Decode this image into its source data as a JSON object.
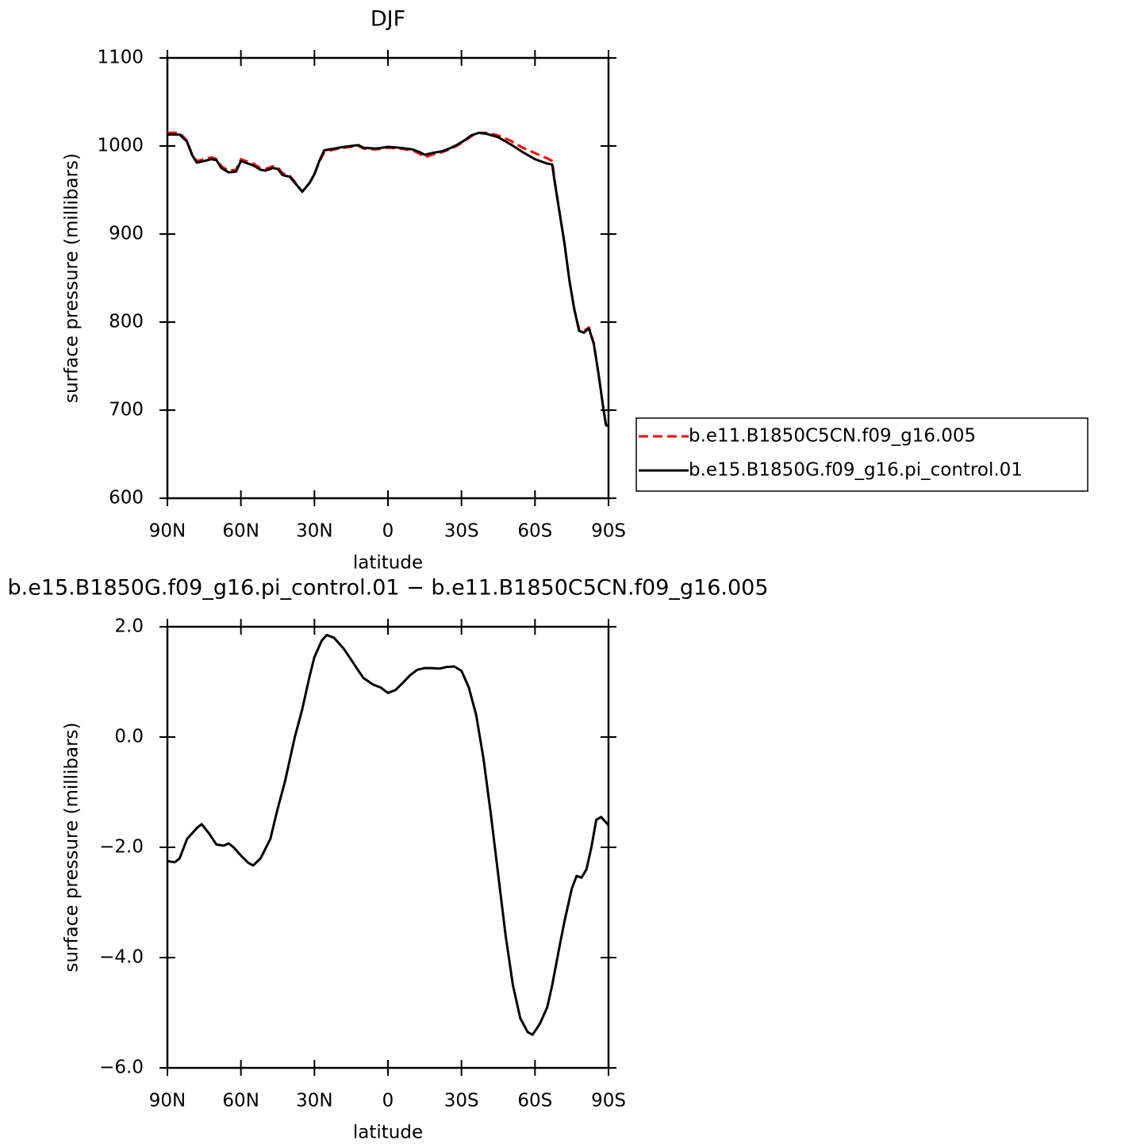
{
  "chart_data": [
    {
      "type": "line",
      "title": "DJF",
      "xlabel": "latitude",
      "ylabel": "surface pressure (millibars)",
      "xlim": [
        90,
        -90
      ],
      "xticks": [
        {
          "value": 90,
          "label": "90N"
        },
        {
          "value": 60,
          "label": "60N"
        },
        {
          "value": 30,
          "label": "30N"
        },
        0,
        {
          "value": -30,
          "label": "30S"
        },
        {
          "value": -60,
          "label": "60S"
        },
        {
          "value": -90,
          "label": "90S"
        }
      ],
      "ylim": [
        600,
        1100
      ],
      "yticks": [
        600,
        700,
        800,
        900,
        1000,
        1100
      ],
      "legend": "right",
      "x": [
        90,
        85,
        82,
        80,
        78,
        75,
        72,
        70,
        68,
        65,
        62,
        60,
        58,
        55,
        52,
        50,
        47,
        45,
        43,
        40,
        37,
        35,
        32,
        30,
        28,
        26,
        22,
        18,
        15,
        12,
        10,
        5,
        0,
        -5,
        -10,
        -13,
        -15,
        -18,
        -22,
        -25,
        -28,
        -31,
        -34,
        -37,
        -40,
        -45,
        -50,
        -55,
        -60,
        -63,
        -65,
        -67,
        -68,
        -70,
        -72,
        -74,
        -76,
        -78,
        -80,
        -82,
        -84,
        -86,
        -88,
        -89,
        -90
      ],
      "series": [
        {
          "name": "b.e11.B1850C5CN.f09_g16.005",
          "color": "#ff0000",
          "dash": true,
          "values": [
            1015,
            1015,
            1006,
            991,
            983,
            985,
            987,
            985,
            977,
            972,
            973,
            985,
            983,
            980,
            975,
            974,
            977,
            976,
            969,
            966,
            956,
            948,
            958,
            968,
            982,
            993,
            996,
            998,
            999,
            1000,
            997,
            996,
            998,
            997,
            995,
            991,
            987,
            990,
            993,
            996,
            1000,
            1005,
            1011,
            1015,
            1015,
            1012,
            1006,
            998,
            992,
            988,
            986,
            983,
            962,
            925,
            890,
            848,
            815,
            792,
            790,
            794,
            776,
            740,
            700,
            683,
            682
          ]
        },
        {
          "name": "b.e15.B1850G.f09_g16.pi_control.01",
          "color": "#000000",
          "dash": false,
          "values": [
            1013,
            1013,
            1005,
            990,
            981,
            983,
            985,
            984,
            975,
            970,
            971,
            983,
            981,
            978,
            973,
            972,
            975,
            974,
            967,
            965,
            955,
            948,
            958,
            968,
            983,
            995,
            997,
            999,
            1000,
            1001,
            998,
            997,
            999,
            998,
            996,
            993,
            990,
            992,
            994,
            997,
            1001,
            1006,
            1012,
            1015,
            1014,
            1010,
            1002,
            993,
            985,
            982,
            980,
            979,
            960,
            925,
            890,
            848,
            815,
            790,
            788,
            793,
            775,
            740,
            700,
            683,
            682
          ]
        }
      ]
    },
    {
      "type": "line",
      "title": "b.e15.B1850G.f09_g16.pi_control.01 − b.e11.B1850C5CN.f09_g16.005",
      "xlabel": "latitude",
      "ylabel": "surface pressure (millibars)",
      "xlim": [
        90,
        -90
      ],
      "xticks": [
        {
          "value": 90,
          "label": "90N"
        },
        {
          "value": 60,
          "label": "60N"
        },
        {
          "value": 30,
          "label": "30N"
        },
        0,
        {
          "value": -30,
          "label": "30S"
        },
        {
          "value": -60,
          "label": "60S"
        },
        {
          "value": -90,
          "label": "90S"
        }
      ],
      "ylim": [
        -6,
        2
      ],
      "yticks": [
        {
          "value": -6,
          "label": "−6.0"
        },
        {
          "value": -4,
          "label": "−4.0"
        },
        {
          "value": -2,
          "label": "−2.0"
        },
        {
          "value": 0,
          "label": "0.0"
        },
        {
          "value": 2,
          "label": "2.0"
        }
      ],
      "x": [
        90,
        87,
        85,
        82,
        78,
        76,
        73,
        70,
        67,
        65,
        63,
        60,
        57,
        55,
        52,
        48,
        45,
        42,
        38,
        35,
        32,
        30,
        27,
        25,
        22,
        18,
        15,
        12,
        10,
        6,
        3,
        0,
        -3,
        -6,
        -9,
        -12,
        -15,
        -18,
        -21,
        -24,
        -27,
        -30,
        -33,
        -36,
        -39,
        -42,
        -45,
        -48,
        -51,
        -54,
        -57,
        -59,
        -62,
        -65,
        -67,
        -70,
        -72,
        -75,
        -77,
        -79,
        -81,
        -83,
        -85,
        -87,
        -89,
        -90
      ],
      "series": [
        {
          "name": null,
          "color": "#000000",
          "dash": false,
          "values": [
            -2.25,
            -2.27,
            -2.2,
            -1.85,
            -1.65,
            -1.58,
            -1.75,
            -1.95,
            -1.97,
            -1.93,
            -2.0,
            -2.15,
            -2.28,
            -2.33,
            -2.2,
            -1.85,
            -1.3,
            -0.8,
            0.0,
            0.5,
            1.1,
            1.45,
            1.75,
            1.85,
            1.8,
            1.6,
            1.4,
            1.2,
            1.07,
            0.95,
            0.9,
            0.8,
            0.85,
            0.98,
            1.12,
            1.22,
            1.25,
            1.25,
            1.24,
            1.27,
            1.28,
            1.2,
            0.9,
            0.4,
            -0.4,
            -1.4,
            -2.5,
            -3.6,
            -4.5,
            -5.1,
            -5.35,
            -5.4,
            -5.2,
            -4.9,
            -4.5,
            -3.8,
            -3.35,
            -2.75,
            -2.52,
            -2.55,
            -2.4,
            -2.0,
            -1.5,
            -1.45,
            -1.55,
            -1.6
          ]
        }
      ]
    }
  ]
}
